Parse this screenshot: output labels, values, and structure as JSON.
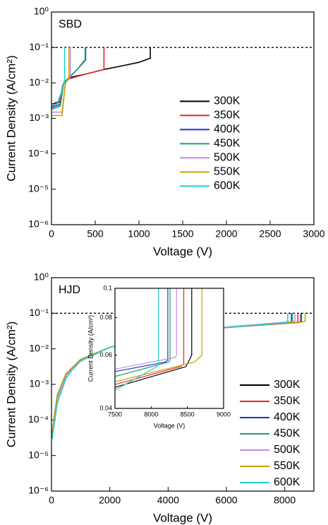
{
  "chart_data": [
    {
      "type": "line",
      "annotation": "SBD",
      "xlabel": "Voltage (V)",
      "ylabel": "Current Density (A/cm²)",
      "xlim": [
        0,
        3000
      ],
      "xticks": [
        0,
        500,
        1000,
        1500,
        2000,
        2500,
        3000
      ],
      "yscale": "log",
      "ylim": [
        1e-06,
        1
      ],
      "yticks": [
        {
          "value": 1e-06,
          "label": "10⁻⁶"
        },
        {
          "value": 1e-05,
          "label": "10⁻⁵"
        },
        {
          "value": 0.0001,
          "label": "10⁻⁴"
        },
        {
          "value": 0.001,
          "label": "10⁻³"
        },
        {
          "value": 0.01,
          "label": "10⁻²"
        },
        {
          "value": 0.1,
          "label": "10⁻¹"
        },
        {
          "value": 1,
          "label": "10⁰"
        }
      ],
      "hline": 0.1,
      "legend": "center right",
      "series": [
        {
          "name": "300K",
          "color": "#000000",
          "x": [
            0,
            100,
            140,
            200,
            400,
            600,
            800,
            1000,
            1130,
            1130
          ],
          "values": [
            0.0025,
            0.003,
            0.01,
            0.014,
            0.018,
            0.024,
            0.03,
            0.038,
            0.05,
            0.1
          ]
        },
        {
          "name": "350K",
          "color": "#e8262a",
          "x": [
            0,
            90,
            130,
            200,
            400,
            600,
            600
          ],
          "values": [
            0.0022,
            0.0028,
            0.009,
            0.013,
            0.018,
            0.024,
            0.1
          ]
        },
        {
          "name": "400K",
          "color": "#1f2fd0",
          "x": [
            0,
            100,
            140,
            200,
            300,
            390,
            390
          ],
          "values": [
            0.002,
            0.0025,
            0.01,
            0.014,
            0.025,
            0.045,
            0.1
          ]
        },
        {
          "name": "450K",
          "color": "#1aa36a",
          "x": [
            0,
            100,
            140,
            200,
            300,
            385,
            385
          ],
          "values": [
            0.0018,
            0.0022,
            0.01,
            0.014,
            0.025,
            0.046,
            0.1
          ]
        },
        {
          "name": "500K",
          "color": "#c48cf0",
          "x": [
            0,
            120,
            160,
            215,
            215
          ],
          "values": [
            0.0015,
            0.0015,
            0.01,
            0.015,
            0.1
          ]
        },
        {
          "name": "550K",
          "color": "#c9a000",
          "x": [
            0,
            120,
            160,
            200,
            200
          ],
          "values": [
            0.0012,
            0.0012,
            0.01,
            0.014,
            0.1
          ]
        },
        {
          "name": "600K",
          "color": "#22cfcf",
          "x": [
            0,
            60,
            110,
            150,
            150
          ],
          "values": [
            0.0025,
            0.0025,
            0.005,
            0.012,
            0.1
          ]
        }
      ]
    },
    {
      "type": "line",
      "annotation": "HJD",
      "xlabel": "Voltage (V)",
      "ylabel": "Current Density (A/cm²)",
      "xlim": [
        0,
        9000
      ],
      "xticks": [
        0,
        2000,
        4000,
        6000,
        8000
      ],
      "yscale": "log",
      "ylim": [
        1e-06,
        1
      ],
      "yticks": [
        {
          "value": 1e-06,
          "label": "10⁻⁶"
        },
        {
          "value": 1e-05,
          "label": "10⁻⁵"
        },
        {
          "value": 0.0001,
          "label": "10⁻⁴"
        },
        {
          "value": 0.001,
          "label": "10⁻³"
        },
        {
          "value": 0.01,
          "label": "10⁻²"
        },
        {
          "value": 0.1,
          "label": "10⁻¹"
        },
        {
          "value": 1,
          "label": "10⁰"
        }
      ],
      "hline": 0.1,
      "legend": "lower right",
      "series": [
        {
          "name": "300K",
          "color": "#000000",
          "x": [
            20,
            200,
            500,
            1000,
            2000,
            4000,
            6000,
            8480,
            8560,
            8560
          ],
          "values": [
            4e-05,
            0.0005,
            0.002,
            0.005,
            0.011,
            0.026,
            0.04,
            0.055,
            0.06,
            0.1
          ]
        },
        {
          "name": "350K",
          "color": "#e8262a",
          "x": [
            20,
            200,
            500,
            1000,
            2000,
            4000,
            6000,
            8400,
            8450,
            8450
          ],
          "values": [
            4e-05,
            0.0005,
            0.002,
            0.005,
            0.011,
            0.026,
            0.04,
            0.055,
            0.056,
            0.1
          ]
        },
        {
          "name": "400K",
          "color": "#1f2fd0",
          "x": [
            20,
            200,
            500,
            1000,
            2000,
            4000,
            6000,
            8200,
            8230,
            8230
          ],
          "values": [
            4e-05,
            0.0005,
            0.002,
            0.005,
            0.011,
            0.026,
            0.04,
            0.057,
            0.058,
            0.1
          ]
        },
        {
          "name": "450K",
          "color": "#1aa36a",
          "x": [
            20,
            200,
            500,
            1000,
            2000,
            4000,
            6000,
            8240,
            8260,
            8260
          ],
          "values": [
            3e-05,
            0.0004,
            0.0018,
            0.0048,
            0.011,
            0.026,
            0.04,
            0.057,
            0.058,
            0.1
          ]
        },
        {
          "name": "500K",
          "color": "#c48cf0",
          "x": [
            20,
            200,
            500,
            1000,
            2000,
            4000,
            6000,
            8330,
            8350,
            8350
          ],
          "values": [
            3e-05,
            0.0004,
            0.0018,
            0.0048,
            0.011,
            0.027,
            0.041,
            0.059,
            0.06,
            0.1
          ]
        },
        {
          "name": "550K",
          "color": "#c9a000",
          "x": [
            20,
            200,
            500,
            1000,
            2000,
            4000,
            6000,
            8600,
            8700,
            8700
          ],
          "values": [
            4e-05,
            0.0005,
            0.002,
            0.005,
            0.011,
            0.026,
            0.04,
            0.057,
            0.06,
            0.1
          ]
        },
        {
          "name": "600K",
          "color": "#22cfcf",
          "x": [
            20,
            200,
            500,
            700,
            1000,
            2000,
            4000,
            6000,
            8080,
            8100,
            8100
          ],
          "values": [
            3e-05,
            0.0003,
            0.0015,
            0.0025,
            0.0045,
            0.011,
            0.026,
            0.04,
            0.055,
            0.056,
            0.1
          ]
        }
      ]
    },
    {
      "type": "line",
      "xlabel": "Voltage (V)",
      "ylabel": "Current Density (A/cm²)",
      "xlim": [
        7500,
        9000
      ],
      "xticks": [
        7500,
        8000,
        8500,
        9000
      ],
      "yscale": "log",
      "ylim": [
        0.04,
        0.1
      ],
      "yticks": [
        0.04,
        0.06,
        0.08,
        0.1
      ],
      "series": [
        {
          "name": "300K",
          "color": "#000000",
          "x": [
            7500,
            8480,
            8560,
            8560
          ],
          "values": [
            0.047,
            0.055,
            0.06,
            0.1
          ]
        },
        {
          "name": "350K",
          "color": "#e8262a",
          "x": [
            7500,
            8400,
            8450,
            8450
          ],
          "values": [
            0.048,
            0.055,
            0.056,
            0.1
          ]
        },
        {
          "name": "400K",
          "color": "#1f2fd0",
          "x": [
            7500,
            8200,
            8230,
            8230
          ],
          "values": [
            0.053,
            0.057,
            0.058,
            0.1
          ]
        },
        {
          "name": "450K",
          "color": "#1aa36a",
          "x": [
            7500,
            8240,
            8260,
            8260
          ],
          "values": [
            0.051,
            0.057,
            0.058,
            0.1
          ]
        },
        {
          "name": "500K",
          "color": "#c48cf0",
          "x": [
            7500,
            8330,
            8350,
            8350
          ],
          "values": [
            0.054,
            0.059,
            0.06,
            0.1
          ]
        },
        {
          "name": "550K",
          "color": "#c9a000",
          "x": [
            7500,
            8600,
            8700,
            8700
          ],
          "values": [
            0.049,
            0.057,
            0.06,
            0.1
          ]
        },
        {
          "name": "600K",
          "color": "#22cfcf",
          "x": [
            7500,
            8080,
            8100,
            8100
          ],
          "values": [
            0.046,
            0.055,
            0.056,
            0.1
          ]
        }
      ]
    }
  ]
}
